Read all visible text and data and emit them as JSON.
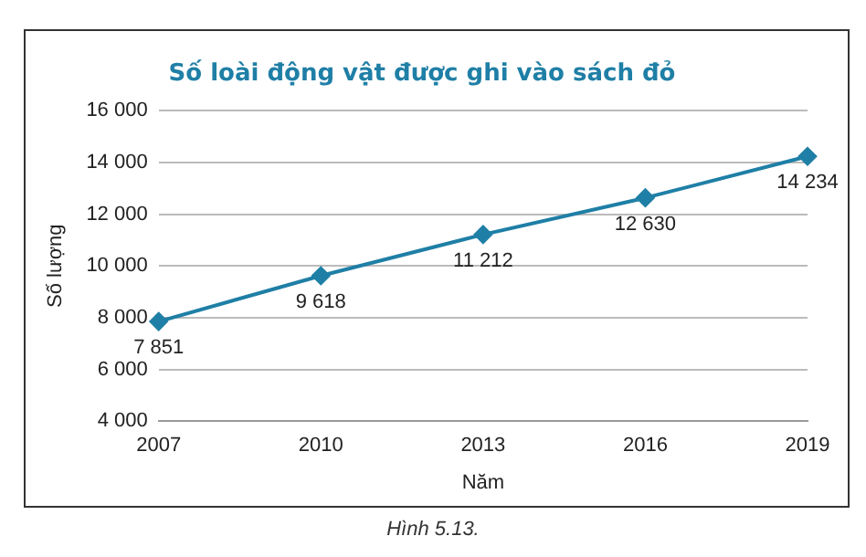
{
  "chart_data": {
    "type": "line",
    "title": "Số loài động vật được ghi vào sách đỏ",
    "xlabel": "Năm",
    "ylabel": "Số lượng",
    "categories": [
      "2007",
      "2010",
      "2013",
      "2016",
      "2019"
    ],
    "series": [
      {
        "color": "#1f7fa6",
        "values": [
          7851,
          9618,
          11212,
          12630,
          14234
        ],
        "value_labels": [
          "7 851",
          "9 618",
          "11 212",
          "12 630",
          "14 234"
        ]
      }
    ],
    "ylim": [
      4000,
      16000
    ],
    "yticks": [
      {
        "value": 4000,
        "label": "4 000"
      },
      {
        "value": 6000,
        "label": "6 000"
      },
      {
        "value": 8000,
        "label": "8 000"
      },
      {
        "value": 10000,
        "label": "10 000"
      },
      {
        "value": 12000,
        "label": "12 000"
      },
      {
        "value": 14000,
        "label": "14 000"
      },
      {
        "value": 16000,
        "label": "16 000"
      }
    ],
    "grid": "y",
    "marker": "diamond",
    "legend": false,
    "annotations": [
      "Hình 5.13."
    ]
  }
}
